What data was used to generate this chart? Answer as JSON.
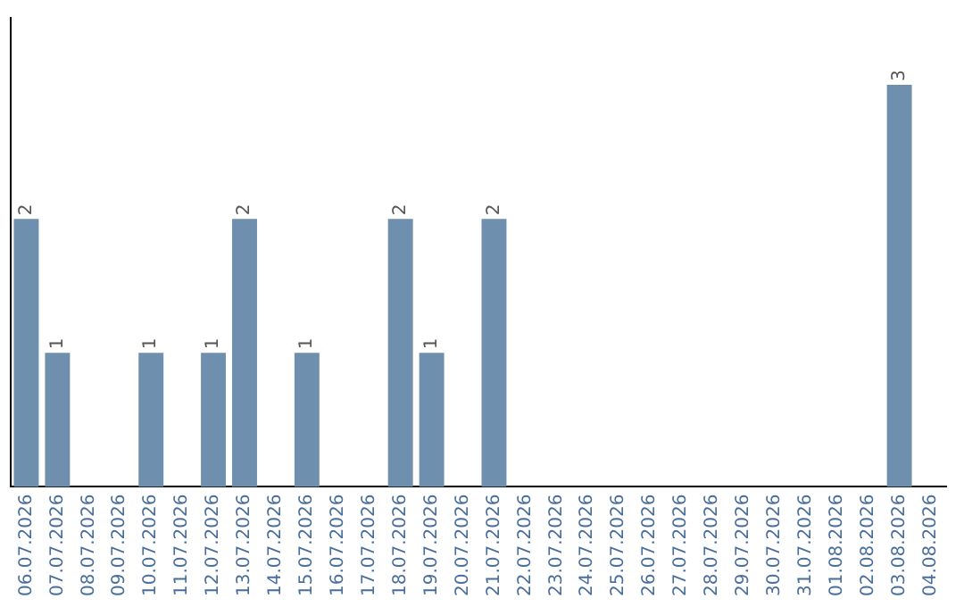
{
  "chart_data": {
    "type": "bar",
    "categories": [
      "06.07.2026",
      "07.07.2026",
      "08.07.2026",
      "09.07.2026",
      "10.07.2026",
      "11.07.2026",
      "12.07.2026",
      "13.07.2026",
      "14.07.2026",
      "15.07.2026",
      "16.07.2026",
      "17.07.2026",
      "18.07.2026",
      "19.07.2026",
      "20.07.2026",
      "21.07.2026",
      "22.07.2026",
      "23.07.2026",
      "24.07.2026",
      "25.07.2026",
      "26.07.2026",
      "27.07.2026",
      "28.07.2026",
      "29.07.2026",
      "30.07.2026",
      "31.07.2026",
      "01.08.2026",
      "02.08.2026",
      "03.08.2026",
      "04.08.2026"
    ],
    "values": [
      2,
      1,
      0,
      0,
      1,
      0,
      1,
      2,
      0,
      1,
      0,
      0,
      2,
      1,
      0,
      2,
      0,
      0,
      0,
      0,
      0,
      0,
      0,
      0,
      0,
      0,
      0,
      0,
      3,
      0
    ],
    "value_labels": [
      "2",
      "1",
      null,
      null,
      "1",
      null,
      "1",
      "2",
      null,
      "1",
      null,
      null,
      "2",
      "1",
      null,
      "2",
      null,
      null,
      null,
      null,
      null,
      null,
      null,
      null,
      null,
      null,
      null,
      null,
      "3",
      null
    ],
    "color": "#6f8fae",
    "grid": false,
    "legend": false,
    "tick_labels": "x"
  }
}
